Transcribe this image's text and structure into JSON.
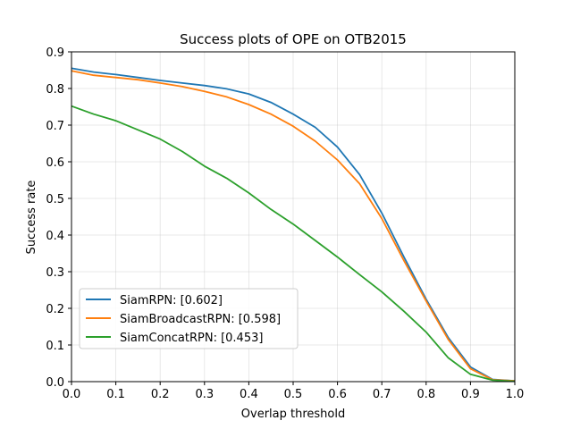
{
  "chart_data": {
    "type": "line",
    "title": "Success plots of OPE on OTB2015",
    "xlabel": "Overlap threshold",
    "ylabel": "Success rate",
    "xlim": [
      0.0,
      1.0
    ],
    "ylim": [
      0.0,
      0.9
    ],
    "xticks": [
      "0.0",
      "0.1",
      "0.2",
      "0.3",
      "0.4",
      "0.5",
      "0.6",
      "0.7",
      "0.8",
      "0.9",
      "1.0"
    ],
    "yticks": [
      "0.0",
      "0.1",
      "0.2",
      "0.3",
      "0.4",
      "0.5",
      "0.6",
      "0.7",
      "0.8",
      "0.9"
    ],
    "grid": true,
    "legend_position": "lower-left",
    "x": [
      0.0,
      0.05,
      0.1,
      0.15,
      0.2,
      0.25,
      0.3,
      0.35,
      0.4,
      0.45,
      0.5,
      0.55,
      0.6,
      0.65,
      0.7,
      0.75,
      0.8,
      0.85,
      0.9,
      0.95,
      1.0
    ],
    "series": [
      {
        "name": "SiamRPN: [0.602]",
        "color": "#1f77b4",
        "values": [
          0.855,
          0.845,
          0.838,
          0.83,
          0.822,
          0.815,
          0.808,
          0.799,
          0.785,
          0.762,
          0.73,
          0.694,
          0.64,
          0.565,
          0.46,
          0.34,
          0.225,
          0.12,
          0.04,
          0.006,
          0.002
        ]
      },
      {
        "name": "SiamBroadcastRPN: [0.598]",
        "color": "#ff7f0e",
        "values": [
          0.848,
          0.836,
          0.83,
          0.824,
          0.815,
          0.805,
          0.792,
          0.777,
          0.756,
          0.73,
          0.697,
          0.656,
          0.605,
          0.54,
          0.445,
          0.33,
          0.22,
          0.115,
          0.035,
          0.005,
          0.002
        ]
      },
      {
        "name": "SiamConcatRPN: [0.453]",
        "color": "#2ca02c",
        "values": [
          0.752,
          0.73,
          0.712,
          0.687,
          0.662,
          0.628,
          0.588,
          0.555,
          0.515,
          0.47,
          0.43,
          0.385,
          0.34,
          0.292,
          0.245,
          0.192,
          0.135,
          0.065,
          0.02,
          0.004,
          0.001
        ]
      }
    ]
  }
}
